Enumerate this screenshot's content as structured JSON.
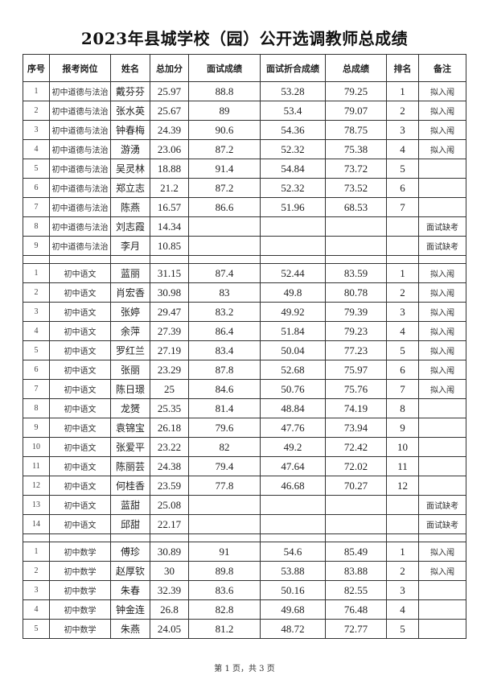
{
  "title": "2023年县城学校（园）公开选调教师总成绩",
  "columns": [
    "序号",
    "报考岗位",
    "姓名",
    "总加分",
    "面试成绩",
    "面试折合成绩",
    "总成绩",
    "排名",
    "备注"
  ],
  "groups": [
    {
      "rows": [
        [
          "1",
          "初中道德与法治",
          "戴芬芬",
          "25.97",
          "88.8",
          "53.28",
          "79.25",
          "1",
          "拟入闱"
        ],
        [
          "2",
          "初中道德与法治",
          "张水英",
          "25.67",
          "89",
          "53.4",
          "79.07",
          "2",
          "拟入闱"
        ],
        [
          "3",
          "初中道德与法治",
          "钟春梅",
          "24.39",
          "90.6",
          "54.36",
          "78.75",
          "3",
          "拟入闱"
        ],
        [
          "4",
          "初中道德与法治",
          "游湧",
          "23.06",
          "87.2",
          "52.32",
          "75.38",
          "4",
          "拟入闱"
        ],
        [
          "5",
          "初中道德与法治",
          "吴灵林",
          "18.88",
          "91.4",
          "54.84",
          "73.72",
          "5",
          ""
        ],
        [
          "6",
          "初中道德与法治",
          "郑立志",
          "21.2",
          "87.2",
          "52.32",
          "73.52",
          "6",
          ""
        ],
        [
          "7",
          "初中道德与法治",
          "陈燕",
          "16.57",
          "86.6",
          "51.96",
          "68.53",
          "7",
          ""
        ],
        [
          "8",
          "初中道德与法治",
          "刘志霞",
          "14.34",
          "",
          "",
          "",
          "",
          "面试缺考"
        ],
        [
          "9",
          "初中道德与法治",
          "李月",
          "10.85",
          "",
          "",
          "",
          "",
          "面试缺考"
        ]
      ]
    },
    {
      "rows": [
        [
          "1",
          "初中语文",
          "蓝丽",
          "31.15",
          "87.4",
          "52.44",
          "83.59",
          "1",
          "拟入闱"
        ],
        [
          "2",
          "初中语文",
          "肖宏香",
          "30.98",
          "83",
          "49.8",
          "80.78",
          "2",
          "拟入闱"
        ],
        [
          "3",
          "初中语文",
          "张婷",
          "29.47",
          "83.2",
          "49.92",
          "79.39",
          "3",
          "拟入闱"
        ],
        [
          "4",
          "初中语文",
          "余萍",
          "27.39",
          "86.4",
          "51.84",
          "79.23",
          "4",
          "拟入闱"
        ],
        [
          "5",
          "初中语文",
          "罗红兰",
          "27.19",
          "83.4",
          "50.04",
          "77.23",
          "5",
          "拟入闱"
        ],
        [
          "6",
          "初中语文",
          "张丽",
          "23.29",
          "87.8",
          "52.68",
          "75.97",
          "6",
          "拟入闱"
        ],
        [
          "7",
          "初中语文",
          "陈日璟",
          "25",
          "84.6",
          "50.76",
          "75.76",
          "7",
          "拟入闱"
        ],
        [
          "8",
          "初中语文",
          "龙赟",
          "25.35",
          "81.4",
          "48.84",
          "74.19",
          "8",
          ""
        ],
        [
          "9",
          "初中语文",
          "袁锦宝",
          "26.18",
          "79.6",
          "47.76",
          "73.94",
          "9",
          ""
        ],
        [
          "10",
          "初中语文",
          "张爱平",
          "23.22",
          "82",
          "49.2",
          "72.42",
          "10",
          ""
        ],
        [
          "11",
          "初中语文",
          "陈丽芸",
          "24.38",
          "79.4",
          "47.64",
          "72.02",
          "11",
          ""
        ],
        [
          "12",
          "初中语文",
          "何桂香",
          "23.59",
          "77.8",
          "46.68",
          "70.27",
          "12",
          ""
        ],
        [
          "13",
          "初中语文",
          "蓝甜",
          "25.08",
          "",
          "",
          "",
          "",
          "面试缺考"
        ],
        [
          "14",
          "初中语文",
          "邱甜",
          "22.17",
          "",
          "",
          "",
          "",
          "面试缺考"
        ]
      ]
    },
    {
      "rows": [
        [
          "1",
          "初中数学",
          "傅珍",
          "30.89",
          "91",
          "54.6",
          "85.49",
          "1",
          "拟入闱"
        ],
        [
          "2",
          "初中数学",
          "赵厚钦",
          "30",
          "89.8",
          "53.88",
          "83.88",
          "2",
          "拟入闱"
        ],
        [
          "3",
          "初中数学",
          "朱春",
          "32.39",
          "83.6",
          "50.16",
          "82.55",
          "3",
          ""
        ],
        [
          "4",
          "初中数学",
          "钟金连",
          "26.8",
          "82.8",
          "49.68",
          "76.48",
          "4",
          ""
        ],
        [
          "5",
          "初中数学",
          "朱燕",
          "24.05",
          "81.2",
          "48.72",
          "72.77",
          "5",
          ""
        ]
      ]
    }
  ],
  "footer": "第 1 页，共 3 页"
}
